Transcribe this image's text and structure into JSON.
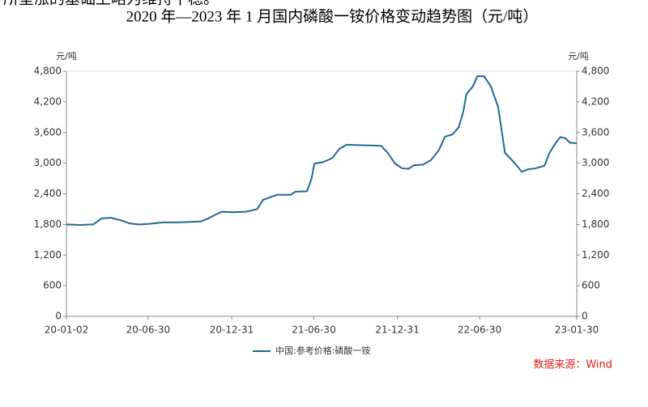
{
  "caption": "所呈涨的基础上略为维持平稳。",
  "chart_data": {
    "type": "line",
    "title": "2020 年—2023 年 1 月国内磷酸一铵价格变动趋势图（元/吨）",
    "y_unit": "元/吨",
    "y2_unit": "元/吨",
    "source": "数据来源：Wind",
    "grid": false,
    "x": [
      "20-01-02",
      "20-02-01",
      "20-03-01",
      "20-03-20",
      "20-04-10",
      "20-05-01",
      "20-05-20",
      "20-06-10",
      "20-07-01",
      "20-08-01",
      "20-09-01",
      "20-10-01",
      "20-10-25",
      "20-11-10",
      "20-11-25",
      "20-12-10",
      "21-01-01",
      "21-02-01",
      "21-02-25",
      "21-03-10",
      "21-03-25",
      "21-04-10",
      "21-05-10",
      "21-05-20",
      "21-06-15",
      "21-06-25",
      "21-07-01",
      "21-07-20",
      "21-08-10",
      "21-08-25",
      "21-09-10",
      "21-10-15",
      "21-11-25",
      "21-12-10",
      "21-12-25",
      "22-01-10",
      "22-01-25",
      "22-02-05",
      "22-02-25",
      "22-03-15",
      "22-04-01",
      "22-04-15",
      "22-05-01",
      "22-05-15",
      "22-05-25",
      "22-06-01",
      "22-06-15",
      "22-06-25",
      "22-07-10",
      "22-07-25",
      "22-08-10",
      "22-08-25",
      "22-09-05",
      "22-09-20",
      "22-10-01",
      "22-10-15",
      "22-11-01",
      "22-11-20",
      "22-12-01",
      "22-12-15",
      "22-12-25",
      "23-01-05",
      "23-01-15",
      "23-01-30"
    ],
    "series": [
      {
        "name": "中国:参考价格:磷酸一铵",
        "color": "#1f6b8c",
        "values": [
          1800,
          1790,
          1800,
          1920,
          1930,
          1880,
          1820,
          1800,
          1810,
          1840,
          1840,
          1850,
          1860,
          1920,
          1990,
          2050,
          2040,
          2050,
          2100,
          2280,
          2330,
          2380,
          2380,
          2440,
          2450,
          2700,
          2990,
          3020,
          3100,
          3280,
          3360,
          3350,
          3340,
          3200,
          3000,
          2900,
          2890,
          2960,
          2970,
          3060,
          3250,
          3520,
          3560,
          3700,
          4000,
          4350,
          4500,
          4700,
          4700,
          4500,
          4100,
          3200,
          3100,
          2950,
          2830,
          2880,
          2900,
          2950,
          3200,
          3400,
          3510,
          3490,
          3400,
          3390
        ]
      }
    ],
    "xlim": [
      "20-01-02",
      "23-01-30"
    ],
    "xticks": [
      "20-01-02",
      "20-06-30",
      "20-12-31",
      "21-06-30",
      "21-12-31",
      "22-06-30",
      "23-01-30"
    ],
    "ylim": [
      0,
      4800
    ],
    "yticks": [
      0,
      600,
      {
        "value": 1200,
        "label": "1,200"
      },
      {
        "value": 1800,
        "label": "1,800"
      },
      {
        "value": 2400,
        "label": "2,400"
      },
      {
        "value": 3000,
        "label": "3,000"
      },
      {
        "value": 3600,
        "label": "3,600"
      },
      {
        "value": 4200,
        "label": "4,200"
      },
      {
        "value": 4800,
        "label": "4,800"
      }
    ],
    "y2lim": [
      0,
      4800
    ],
    "y2ticks": [
      0,
      600,
      {
        "value": 1200,
        "label": "1,200"
      },
      {
        "value": 1800,
        "label": "1,800"
      },
      {
        "value": 2400,
        "label": "2,400"
      },
      {
        "value": 3000,
        "label": "3,000"
      },
      {
        "value": 3600,
        "label": "3,600"
      },
      {
        "value": 4200,
        "label": "4,200"
      },
      {
        "value": 4800,
        "label": "4,800"
      }
    ]
  }
}
